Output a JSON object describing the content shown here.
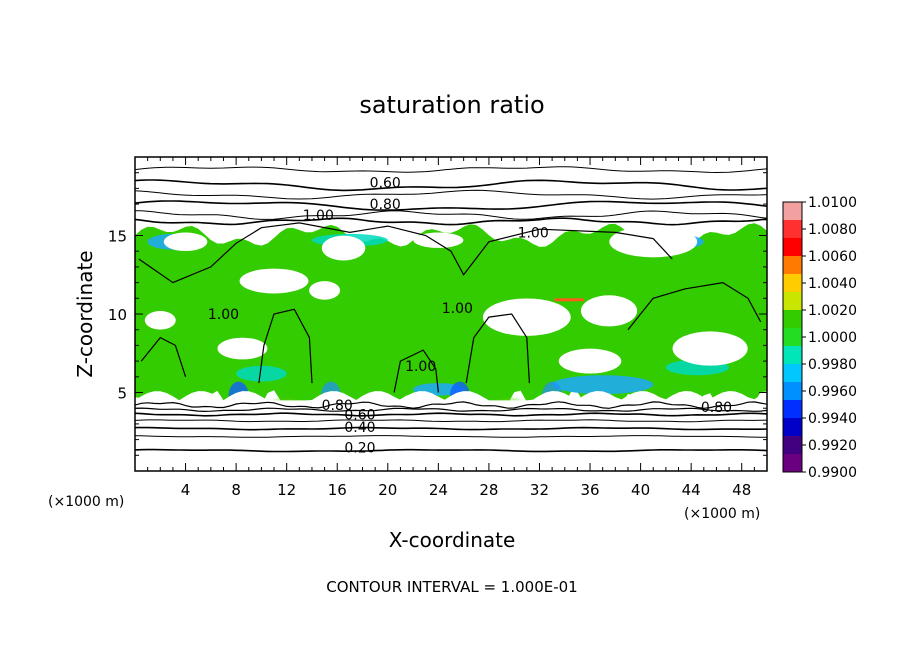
{
  "chart_data": {
    "type": "heatmap",
    "title": "saturation ratio",
    "xlabel": "X-coordinate",
    "ylabel": "Z-coordinate",
    "x_unit_label": "(×1000 m)",
    "x_unit_label_right": "(×1000 m)",
    "x_ticks": [
      4,
      8,
      12,
      16,
      20,
      24,
      28,
      32,
      36,
      40,
      44,
      48
    ],
    "y_ticks": [
      5,
      10,
      15
    ],
    "xlim": [
      0,
      50
    ],
    "ylim": [
      0,
      20
    ],
    "colorbar": {
      "ticks": [
        "1.0100",
        "1.0080",
        "1.0060",
        "1.0040",
        "1.0020",
        "1.0000",
        "0.9980",
        "0.9960",
        "0.9940",
        "0.9920",
        "0.9900"
      ],
      "range": [
        0.99,
        1.01
      ],
      "colors": [
        "#f2a0a0",
        "#ff3030",
        "#ff0000",
        "#ff7a00",
        "#ffcc00",
        "#c8e600",
        "#33cc00",
        "#22dd22",
        "#00e6b8",
        "#00c8ff",
        "#0090ff",
        "#0030ff",
        "#0000c8",
        "#400080",
        "#6a0080"
      ]
    },
    "contour_labels": [
      {
        "text": "0.60",
        "x": 19.8,
        "y": 18.2
      },
      {
        "text": "0.80",
        "x": 19.8,
        "y": 16.8
      },
      {
        "text": "1.00",
        "x": 14.5,
        "y": 16.1
      },
      {
        "text": "1.00",
        "x": 31.5,
        "y": 15.0
      },
      {
        "text": "1.00",
        "x": 7.0,
        "y": 9.8
      },
      {
        "text": "1.00",
        "x": 25.5,
        "y": 10.2
      },
      {
        "text": "1.00",
        "x": 22.6,
        "y": 6.5
      },
      {
        "text": "0.80",
        "x": 16.0,
        "y": 4.0
      },
      {
        "text": "0.80",
        "x": 46.0,
        "y": 3.9
      },
      {
        "text": "0.60",
        "x": 17.8,
        "y": 3.4
      },
      {
        "text": "0.40",
        "x": 17.8,
        "y": 2.6
      },
      {
        "text": "0.20",
        "x": 17.8,
        "y": 1.3
      }
    ],
    "layers": {
      "dry_top_z": 17.5,
      "cloud_top_z": 15.0,
      "cloud_base_z": 5.5,
      "ground_layer_z": 4.0,
      "cores_x": [
        12,
        29.5
      ]
    },
    "grid": false,
    "legend": "colorbar-right"
  },
  "footer": "CONTOUR INTERVAL = 1.000E-01"
}
